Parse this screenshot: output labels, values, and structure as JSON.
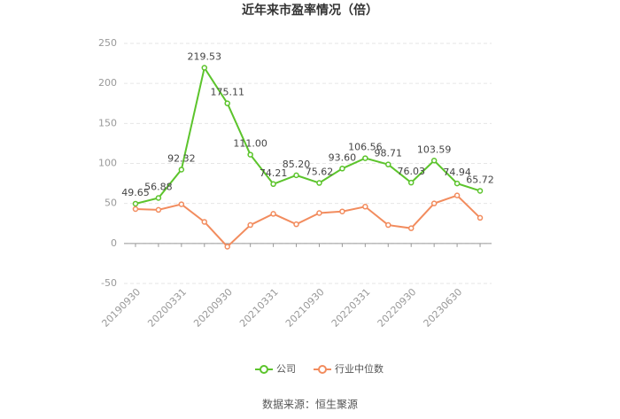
{
  "chart_data": {
    "type": "line",
    "title": "近年来市盈率情况（倍）",
    "categories": [
      "20190930",
      null,
      "20200331",
      null,
      "20200930",
      null,
      "20210331",
      null,
      "20210930",
      null,
      "20220331",
      null,
      "20220930",
      null,
      "20230630",
      null
    ],
    "series": [
      {
        "name": "公司",
        "color": "#5cc42c",
        "values": [
          49.65,
          56.88,
          92.32,
          219.53,
          175.11,
          111.0,
          74.21,
          85.2,
          75.62,
          93.6,
          106.56,
          98.71,
          76.03,
          103.59,
          74.94,
          65.72
        ],
        "value_labels": [
          "49.65",
          "56.88",
          "92.32",
          "219.53",
          "175.11",
          "111.00",
          "74.21",
          "85.20",
          "75.62",
          "93.60",
          "106.56",
          "98.71",
          "76.03",
          "103.59",
          "74.94",
          "65.72"
        ]
      },
      {
        "name": "行业中位数",
        "color": "#f28c5e",
        "values": [
          43,
          42,
          49,
          27,
          -4,
          23,
          37,
          24,
          38,
          40,
          46,
          23,
          19,
          50,
          60,
          32
        ]
      }
    ],
    "ylim": [
      -50,
      250
    ],
    "yticks": [
      -50,
      0,
      50,
      100,
      150,
      200,
      250
    ],
    "grid": true,
    "legend": "bottom",
    "source": "数据来源：恒生聚源"
  }
}
